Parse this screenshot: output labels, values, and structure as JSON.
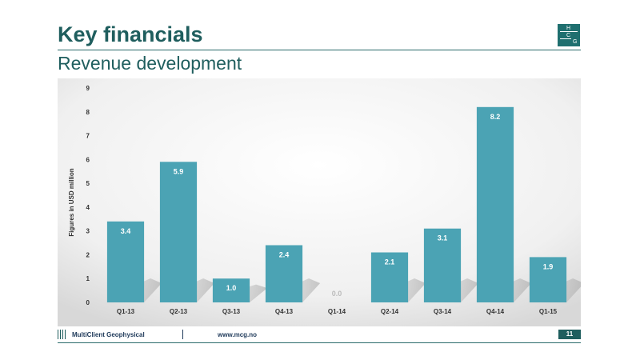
{
  "slide": {
    "title": "Key financials",
    "subtitle": "Revenue development",
    "logo_letters": [
      "H",
      "C",
      "G"
    ]
  },
  "footer": {
    "company": "MultiClient Geophysical",
    "url": "www.mcg.no",
    "page": "11"
  },
  "colors": {
    "bar": "#4ba3b4",
    "title": "#1f5e5e",
    "axis_text": "#333333"
  },
  "chart_data": {
    "type": "bar",
    "categories": [
      "Q1-13",
      "Q2-13",
      "Q3-13",
      "Q4-13",
      "Q1-14",
      "Q2-14",
      "Q3-14",
      "Q4-14",
      "Q1-15"
    ],
    "values": [
      3.4,
      5.9,
      1.0,
      2.4,
      0.0,
      2.1,
      3.1,
      8.2,
      1.9
    ],
    "value_labels": [
      "3.4",
      "5.9",
      "1.0",
      "2.4",
      "0.0",
      "2.1",
      "3.1",
      "8.2",
      "1.9"
    ],
    "title": "",
    "xlabel": "",
    "ylabel": "Figures in USD million",
    "ylim": [
      0,
      9
    ],
    "yticks": [
      "0",
      "1",
      "2",
      "3",
      "4",
      "5",
      "6",
      "7",
      "8",
      "9"
    ],
    "grid": false
  }
}
